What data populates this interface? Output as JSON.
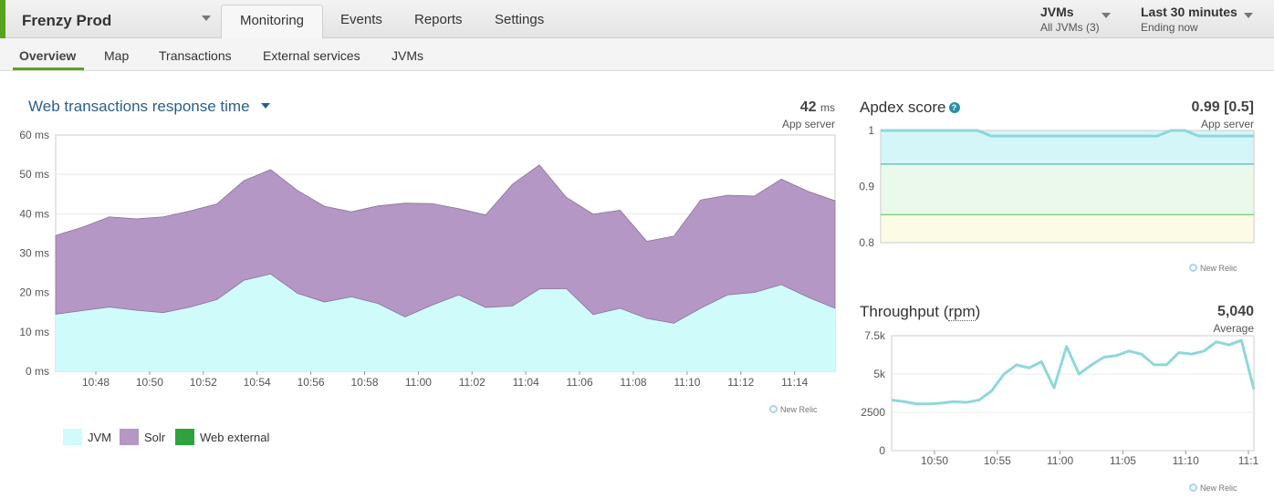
{
  "app": {
    "name": "Frenzy Prod"
  },
  "tabs": [
    {
      "label": "Monitoring",
      "active": true
    },
    {
      "label": "Events"
    },
    {
      "label": "Reports"
    },
    {
      "label": "Settings"
    }
  ],
  "jvm_picker": {
    "label": "JVMs",
    "value": "All JVMs (3)"
  },
  "time_picker": {
    "label": "Last 30 minutes",
    "value": "Ending now"
  },
  "subtabs": [
    {
      "label": "Overview",
      "active": true
    },
    {
      "label": "Map"
    },
    {
      "label": "Transactions"
    },
    {
      "label": "External services"
    },
    {
      "label": "JVMs"
    }
  ],
  "response_panel": {
    "title": "Web transactions response time",
    "value": "42",
    "unit": "ms",
    "sublabel": "App server",
    "watermark": "New Relic"
  },
  "apdex_panel": {
    "title": "Apdex score",
    "help_icon": "?",
    "value": "0.99 [0.5]",
    "sublabel": "App server",
    "watermark": "New Relic"
  },
  "throughput_panel": {
    "title": "Throughput",
    "unit_label": "rpm",
    "value": "5,040",
    "sublabel": "Average",
    "watermark": "New Relic"
  },
  "colors": {
    "jvm": "#cffbfb",
    "solr": "#b497c4",
    "web_external": "#2ea33d",
    "line": "#8fd7d9",
    "accent": "#5aa31f"
  },
  "chart_data": [
    {
      "type": "area",
      "stacked": true,
      "x_ticks": [
        "10:48",
        "10:50",
        "10:52",
        "10:54",
        "10:56",
        "10:58",
        "11:00",
        "11:02",
        "11:04",
        "11:06",
        "11:08",
        "11:10",
        "11:12",
        "11:14"
      ],
      "y_ticks": [
        "0 ms",
        "10 ms",
        "20 ms",
        "30 ms",
        "40 ms",
        "50 ms",
        "60 ms"
      ],
      "ylim": [
        0,
        60
      ],
      "grid": true,
      "legend_placement": "bottom-left",
      "legend": [
        {
          "label": "JVM",
          "color": "#cffbfb"
        },
        {
          "label": "Solr",
          "color": "#b497c4"
        },
        {
          "label": "Web external",
          "color": "#2ea33d"
        }
      ],
      "series": [
        {
          "name": "JVM",
          "values": [
            14.5,
            15.4,
            16.3,
            15.5,
            14.9,
            16.3,
            18.2,
            23.1,
            24.7,
            19.8,
            17.6,
            18.9,
            17.2,
            13.8,
            16.8,
            19.4,
            16.2,
            16.6,
            20.9,
            21.0,
            14.4,
            16.0,
            13.4,
            12.2,
            16.0,
            19.4,
            20.0,
            22.0,
            18.8,
            16.0
          ]
        },
        {
          "name": "Solr",
          "values": [
            20.0,
            21.2,
            22.9,
            23.2,
            24.3,
            24.4,
            24.3,
            25.3,
            26.5,
            26.1,
            24.3,
            21.6,
            24.8,
            28.9,
            25.8,
            21.9,
            23.5,
            30.9,
            31.5,
            23.2,
            25.5,
            24.9,
            19.6,
            22.1,
            27.5,
            25.3,
            24.5,
            26.8,
            26.9,
            27.3
          ]
        },
        {
          "name": "Web external",
          "values": [
            0,
            0,
            0,
            0,
            0,
            0,
            0,
            0,
            0,
            0,
            0,
            0,
            0,
            0,
            0,
            0,
            0,
            0,
            0,
            0,
            0,
            0,
            0,
            0,
            0,
            0,
            0,
            0,
            0,
            0
          ]
        }
      ]
    },
    {
      "type": "area",
      "y_ticks": [
        "0.8",
        "0.9",
        "1"
      ],
      "ylim": [
        0.8,
        1.0
      ],
      "thresholds": [
        0.94,
        0.85
      ],
      "series": [
        {
          "name": "Apdex",
          "values": [
            1.0,
            1.0,
            1.0,
            1.0,
            1.0,
            1.0,
            1.0,
            1.0,
            0.99,
            0.99,
            0.99,
            0.99,
            0.99,
            0.99,
            0.99,
            0.99,
            0.99,
            0.99,
            0.99,
            0.99,
            0.99,
            1.0,
            1.0,
            0.99,
            0.99,
            0.99,
            0.99,
            0.99
          ]
        }
      ]
    },
    {
      "type": "line",
      "x_ticks": [
        "10:50",
        "10:55",
        "11:00",
        "11:05",
        "11:10",
        "11:1"
      ],
      "y_ticks": [
        "0",
        "2500",
        "5k",
        "7.5k"
      ],
      "ylim": [
        0,
        7500
      ],
      "series": [
        {
          "name": "Throughput",
          "values": [
            3300,
            3200,
            3050,
            3050,
            3100,
            3200,
            3150,
            3300,
            3900,
            5000,
            5600,
            5400,
            5800,
            4100,
            6800,
            5000,
            5600,
            6100,
            6200,
            6500,
            6300,
            5600,
            5600,
            6400,
            6300,
            6500,
            7100,
            6900,
            7200,
            4000
          ]
        }
      ]
    }
  ]
}
